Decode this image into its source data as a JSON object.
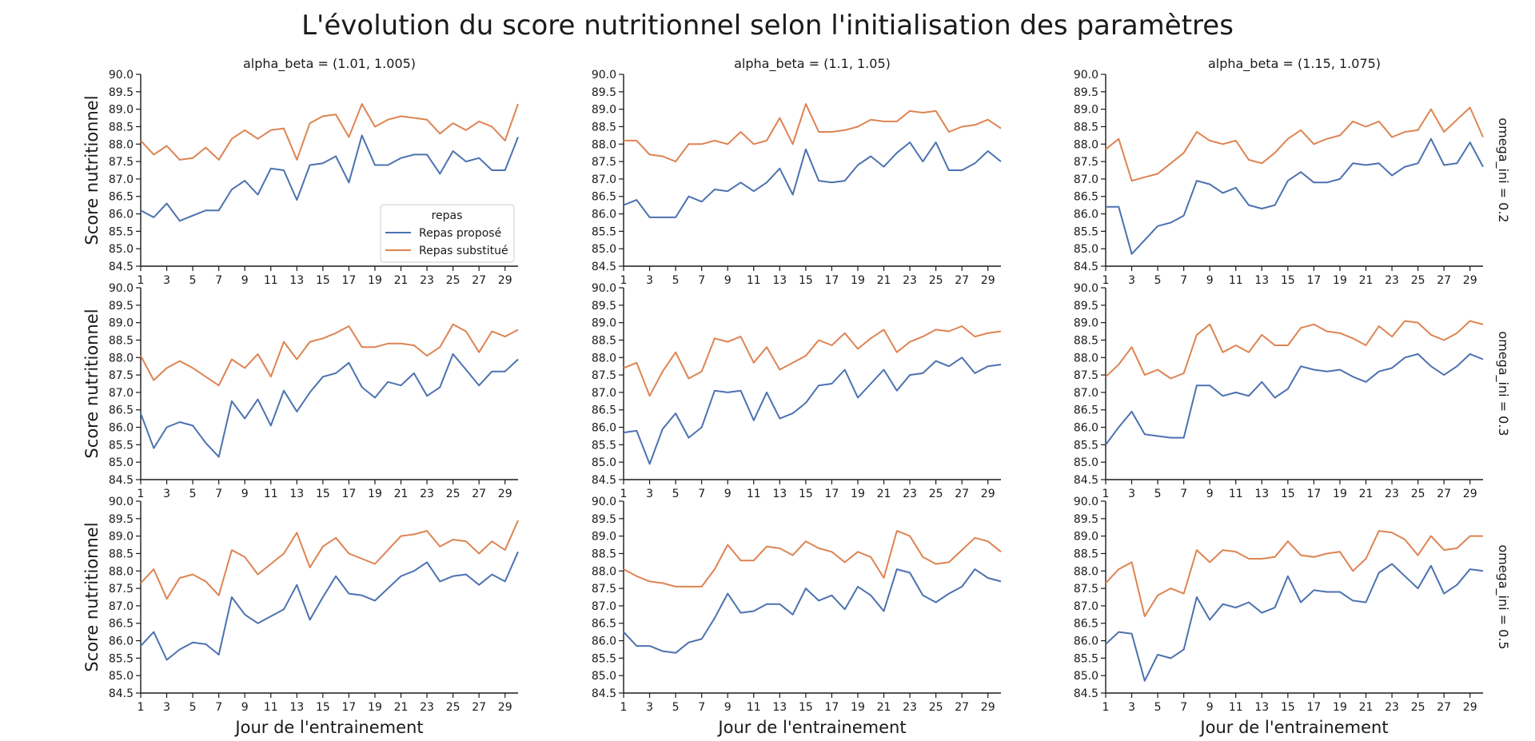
{
  "chart_data": {
    "type": "line",
    "title": "L'évolution du score nutritionnel selon l'initialisation des paramètres",
    "xlabel": "Jour de l'entrainement",
    "ylabel": "Score nutritionnel",
    "xlim": [
      1,
      30
    ],
    "ylim": [
      84.5,
      90.0
    ],
    "xticks": [
      1,
      3,
      5,
      7,
      9,
      11,
      13,
      15,
      17,
      19,
      21,
      23,
      25,
      27,
      29
    ],
    "yticks": [
      84.5,
      85.0,
      85.5,
      86.0,
      86.5,
      87.0,
      87.5,
      88.0,
      88.5,
      89.0,
      89.5,
      90.0
    ],
    "grid": false,
    "col_titles": [
      "alpha_beta = (1.01, 1.005)",
      "alpha_beta = (1.1, 1.05)",
      "alpha_beta = (1.15, 1.075)"
    ],
    "row_titles": [
      "omega_ini = 0.2",
      "omega_ini = 0.3",
      "omega_ini = 0.5"
    ],
    "legend": {
      "title": "repas",
      "placement": "inside lower-right of top-left panel",
      "entries": [
        "Repas proposé",
        "Repas substitué"
      ]
    },
    "series_colors": {
      "Repas proposé": "#4c72b0",
      "Repas substitué": "#dd8452"
    },
    "x": [
      1,
      2,
      3,
      4,
      5,
      6,
      7,
      8,
      9,
      10,
      11,
      12,
      13,
      14,
      15,
      16,
      17,
      18,
      19,
      20,
      21,
      22,
      23,
      24,
      25,
      26,
      27,
      28,
      29,
      30
    ],
    "panels": [
      {
        "row": 0,
        "col": 0,
        "series": [
          {
            "name": "Repas proposé",
            "values": [
              86.1,
              85.9,
              86.3,
              85.8,
              85.95,
              86.1,
              86.1,
              86.7,
              86.95,
              86.55,
              87.3,
              87.25,
              86.4,
              87.4,
              87.45,
              87.65,
              86.9,
              88.25,
              87.4,
              87.4,
              87.6,
              87.7,
              87.7,
              87.15,
              87.8,
              87.5,
              87.6,
              87.25,
              87.25,
              88.2
            ]
          },
          {
            "name": "Repas substitué",
            "values": [
              88.1,
              87.7,
              87.95,
              87.55,
              87.6,
              87.9,
              87.55,
              88.15,
              88.4,
              88.15,
              88.4,
              88.45,
              87.55,
              88.6,
              88.8,
              88.85,
              88.2,
              89.15,
              88.5,
              88.7,
              88.8,
              88.75,
              88.7,
              88.3,
              88.6,
              88.4,
              88.65,
              88.5,
              88.1,
              89.15
            ]
          }
        ]
      },
      {
        "row": 0,
        "col": 1,
        "series": [
          {
            "name": "Repas proposé",
            "values": [
              86.25,
              86.4,
              85.9,
              85.9,
              85.9,
              86.5,
              86.35,
              86.7,
              86.65,
              86.9,
              86.65,
              86.9,
              87.3,
              86.55,
              87.85,
              86.95,
              86.9,
              86.95,
              87.4,
              87.65,
              87.35,
              87.75,
              88.05,
              87.5,
              88.05,
              87.25,
              87.25,
              87.45,
              87.8,
              87.5
            ]
          },
          {
            "name": "Repas substitué",
            "values": [
              88.1,
              88.1,
              87.7,
              87.65,
              87.5,
              88.0,
              88.0,
              88.1,
              88.0,
              88.35,
              88.0,
              88.1,
              88.75,
              88.0,
              89.15,
              88.35,
              88.35,
              88.4,
              88.5,
              88.7,
              88.65,
              88.65,
              88.95,
              88.9,
              88.95,
              88.35,
              88.5,
              88.55,
              88.7,
              88.45
            ]
          }
        ]
      },
      {
        "row": 0,
        "col": 2,
        "series": [
          {
            "name": "Repas proposé",
            "values": [
              86.2,
              86.2,
              84.85,
              85.25,
              85.65,
              85.75,
              85.95,
              86.95,
              86.85,
              86.6,
              86.75,
              86.25,
              86.15,
              86.25,
              86.95,
              87.2,
              86.9,
              86.9,
              87.0,
              87.45,
              87.4,
              87.45,
              87.1,
              87.35,
              87.45,
              88.15,
              87.4,
              87.45,
              88.05,
              87.35
            ]
          },
          {
            "name": "Repas substitué",
            "values": [
              87.85,
              88.15,
              86.95,
              87.05,
              87.15,
              87.45,
              87.75,
              88.35,
              88.1,
              88.0,
              88.1,
              87.55,
              87.45,
              87.75,
              88.15,
              88.4,
              88.0,
              88.15,
              88.25,
              88.65,
              88.5,
              88.65,
              88.2,
              88.35,
              88.4,
              89.0,
              88.35,
              88.7,
              89.05,
              88.2
            ]
          }
        ]
      },
      {
        "row": 1,
        "col": 0,
        "series": [
          {
            "name": "Repas proposé",
            "values": [
              86.4,
              85.4,
              86.0,
              86.15,
              86.05,
              85.55,
              85.15,
              86.75,
              86.25,
              86.8,
              86.05,
              87.05,
              86.45,
              87.0,
              87.45,
              87.55,
              87.85,
              87.15,
              86.85,
              87.3,
              87.2,
              87.55,
              86.9,
              87.15,
              88.1,
              87.65,
              87.2,
              87.6,
              87.6,
              87.95
            ]
          },
          {
            "name": "Repas substitué",
            "values": [
              88.05,
              87.35,
              87.7,
              87.9,
              87.7,
              87.45,
              87.2,
              87.95,
              87.7,
              88.1,
              87.45,
              88.45,
              87.95,
              88.45,
              88.55,
              88.7,
              88.9,
              88.3,
              88.3,
              88.4,
              88.4,
              88.35,
              88.05,
              88.3,
              88.95,
              88.75,
              88.15,
              88.75,
              88.6,
              88.8
            ]
          }
        ]
      },
      {
        "row": 1,
        "col": 1,
        "series": [
          {
            "name": "Repas proposé",
            "values": [
              85.85,
              85.9,
              84.95,
              85.95,
              86.4,
              85.7,
              86.0,
              87.05,
              87.0,
              87.05,
              86.2,
              87.0,
              86.25,
              86.4,
              86.7,
              87.2,
              87.25,
              87.65,
              86.85,
              87.25,
              87.65,
              87.05,
              87.5,
              87.55,
              87.9,
              87.75,
              88.0,
              87.55,
              87.75,
              87.8
            ]
          },
          {
            "name": "Repas substitué",
            "values": [
              87.7,
              87.85,
              86.9,
              87.6,
              88.15,
              87.4,
              87.6,
              88.55,
              88.45,
              88.6,
              87.85,
              88.3,
              87.65,
              87.85,
              88.05,
              88.5,
              88.35,
              88.7,
              88.25,
              88.55,
              88.8,
              88.15,
              88.45,
              88.6,
              88.8,
              88.75,
              88.9,
              88.6,
              88.7,
              88.75
            ]
          }
        ]
      },
      {
        "row": 1,
        "col": 2,
        "series": [
          {
            "name": "Repas proposé",
            "values": [
              85.5,
              86.0,
              86.45,
              85.8,
              85.75,
              85.7,
              85.7,
              87.2,
              87.2,
              86.9,
              87.0,
              86.9,
              87.3,
              86.85,
              87.1,
              87.75,
              87.65,
              87.6,
              87.65,
              87.45,
              87.3,
              87.6,
              87.7,
              88.0,
              88.1,
              87.75,
              87.5,
              87.75,
              88.1,
              87.95
            ]
          },
          {
            "name": "Repas substitué",
            "values": [
              87.45,
              87.8,
              88.3,
              87.5,
              87.65,
              87.4,
              87.55,
              88.65,
              88.95,
              88.15,
              88.35,
              88.15,
              88.65,
              88.35,
              88.35,
              88.85,
              88.95,
              88.75,
              88.7,
              88.55,
              88.35,
              88.9,
              88.6,
              89.05,
              89.0,
              88.65,
              88.5,
              88.7,
              89.05,
              88.95
            ]
          }
        ]
      },
      {
        "row": 2,
        "col": 0,
        "series": [
          {
            "name": "Repas proposé",
            "values": [
              85.85,
              86.25,
              85.45,
              85.75,
              85.95,
              85.9,
              85.6,
              87.25,
              86.75,
              86.5,
              86.7,
              86.9,
              87.6,
              86.6,
              87.25,
              87.85,
              87.35,
              87.3,
              87.15,
              87.5,
              87.85,
              88.0,
              88.25,
              87.7,
              87.85,
              87.9,
              87.6,
              87.9,
              87.7,
              88.55
            ]
          },
          {
            "name": "Repas substitué",
            "values": [
              87.65,
              88.05,
              87.2,
              87.8,
              87.9,
              87.7,
              87.3,
              88.6,
              88.4,
              87.9,
              88.2,
              88.5,
              89.1,
              88.1,
              88.7,
              88.95,
              88.5,
              88.35,
              88.2,
              88.6,
              89.0,
              89.05,
              89.15,
              88.7,
              88.9,
              88.85,
              88.5,
              88.85,
              88.6,
              89.45
            ]
          }
        ]
      },
      {
        "row": 2,
        "col": 1,
        "series": [
          {
            "name": "Repas proposé",
            "values": [
              86.25,
              85.85,
              85.85,
              85.7,
              85.65,
              85.95,
              86.05,
              86.65,
              87.35,
              86.8,
              86.85,
              87.05,
              87.05,
              86.75,
              87.5,
              87.15,
              87.3,
              86.9,
              87.55,
              87.3,
              86.85,
              88.05,
              87.95,
              87.3,
              87.1,
              87.35,
              87.55,
              88.05,
              87.8,
              87.7
            ]
          },
          {
            "name": "Repas substitué",
            "values": [
              88.05,
              87.85,
              87.7,
              87.65,
              87.55,
              87.55,
              87.55,
              88.05,
              88.75,
              88.3,
              88.3,
              88.7,
              88.65,
              88.45,
              88.85,
              88.65,
              88.55,
              88.25,
              88.55,
              88.4,
              87.8,
              89.15,
              89.0,
              88.4,
              88.2,
              88.25,
              88.6,
              88.95,
              88.85,
              88.55
            ]
          }
        ]
      },
      {
        "row": 2,
        "col": 2,
        "series": [
          {
            "name": "Repas proposé",
            "values": [
              85.9,
              86.25,
              86.2,
              84.85,
              85.6,
              85.5,
              85.75,
              87.25,
              86.6,
              87.05,
              86.95,
              87.1,
              86.8,
              86.95,
              87.85,
              87.1,
              87.45,
              87.4,
              87.4,
              87.15,
              87.1,
              87.95,
              88.2,
              87.85,
              87.5,
              88.15,
              87.35,
              87.6,
              88.05,
              88.0
            ]
          },
          {
            "name": "Repas substitué",
            "values": [
              87.65,
              88.05,
              88.25,
              86.7,
              87.3,
              87.5,
              87.35,
              88.6,
              88.25,
              88.6,
              88.55,
              88.35,
              88.35,
              88.4,
              88.85,
              88.45,
              88.4,
              88.5,
              88.55,
              88.0,
              88.35,
              89.15,
              89.1,
              88.9,
              88.45,
              89.0,
              88.6,
              88.65,
              89.0,
              89.0
            ]
          }
        ]
      }
    ]
  }
}
